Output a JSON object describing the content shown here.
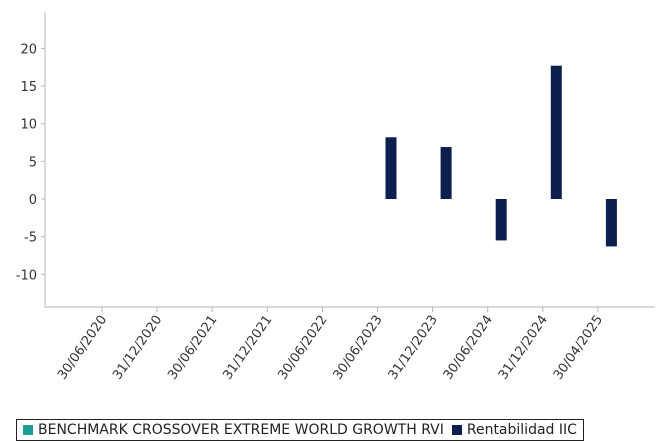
{
  "chart_data": {
    "type": "bar",
    "categories": [
      "30/06/2020",
      "31/12/2020",
      "30/06/2021",
      "31/12/2021",
      "30/06/2022",
      "30/06/2023",
      "31/12/2023",
      "30/06/2024",
      "31/12/2024",
      "30/04/2025"
    ],
    "series": [
      {
        "name": "BENCHMARK CROSSOVER EXTREME WORLD GROWTH RVI",
        "color": "#1a9e96",
        "values": [
          null,
          null,
          null,
          null,
          null,
          null,
          null,
          null,
          null,
          null
        ]
      },
      {
        "name": "Rentabilidad IIC",
        "color": "#0d1f4e",
        "values": [
          null,
          null,
          null,
          null,
          null,
          8.2,
          6.9,
          -5.5,
          17.7,
          -6.3
        ]
      }
    ],
    "yticks": [
      20,
      15,
      10,
      5,
      0,
      -5,
      -10
    ],
    "ylim": [
      -14,
      25
    ],
    "grid": false,
    "legend_position": "bottom"
  }
}
